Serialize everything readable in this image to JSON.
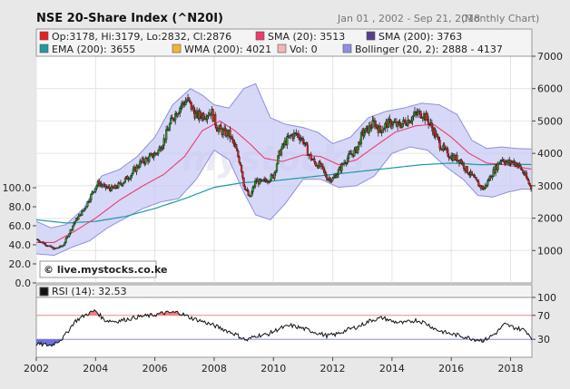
{
  "chart_data": {
    "type": "candlestick",
    "title": "NSE 20-Share Index (^N20I)",
    "date_range": "Jan 01 , 2002 - Sep 21, 2018",
    "frequency": "(Monthly Chart)",
    "watermark": "© live.mystocks.co.ke",
    "legend": [
      {
        "name": "Op:3178, Hi:3179, Lo:2832, Cl:2876",
        "color": "#e8201c"
      },
      {
        "name": "SMA (20): 3513",
        "color": "#ef3b6e"
      },
      {
        "name": "SMA (200): 3763",
        "color": "#5a3d8c"
      },
      {
        "name": "EMA (200): 3655",
        "color": "#1e9aa0"
      },
      {
        "name": "WMA (200): 4021",
        "color": "#f2b43c"
      },
      {
        "name": "Vol: 0",
        "color": "#f2b5b5"
      },
      {
        "name": "Bollinger (20, 2): 2888 - 4137",
        "color": "#8f8fe0"
      }
    ],
    "x_ticks": [
      "2002",
      "2004",
      "2006",
      "2008",
      "2010",
      "2012",
      "2014",
      "2016",
      "2018"
    ],
    "x_range": [
      2002.0,
      2018.72
    ],
    "y_right_ticks": [
      "1000",
      "2000",
      "3000",
      "4000",
      "5000",
      "6000",
      "7000"
    ],
    "y_range": [
      0,
      7000
    ],
    "volume_ticks": [
      "0.0",
      "20.0",
      "40.0",
      "60.0",
      "80.0",
      "100.0"
    ],
    "volume_range": [
      0,
      100
    ],
    "close_anchors": [
      [
        2002.0,
        1350
      ],
      [
        2002.3,
        1200
      ],
      [
        2002.6,
        1050
      ],
      [
        2002.9,
        1150
      ],
      [
        2003.3,
        1900
      ],
      [
        2003.6,
        2250
      ],
      [
        2003.9,
        2800
      ],
      [
        2004.1,
        3100
      ],
      [
        2004.3,
        2950
      ],
      [
        2004.6,
        2900
      ],
      [
        2004.9,
        3100
      ],
      [
        2005.2,
        3350
      ],
      [
        2005.5,
        3700
      ],
      [
        2005.8,
        3850
      ],
      [
        2006.1,
        4050
      ],
      [
        2006.3,
        4400
      ],
      [
        2006.6,
        5100
      ],
      [
        2006.9,
        5500
      ],
      [
        2007.1,
        5650
      ],
      [
        2007.4,
        5150
      ],
      [
        2007.7,
        5200
      ],
      [
        2007.9,
        5300
      ],
      [
        2008.1,
        4800
      ],
      [
        2008.3,
        4650
      ],
      [
        2008.5,
        4600
      ],
      [
        2008.7,
        4200
      ],
      [
        2008.9,
        3650
      ],
      [
        2009.0,
        3050
      ],
      [
        2009.2,
        2600
      ],
      [
        2009.4,
        3150
      ],
      [
        2009.6,
        3100
      ],
      [
        2009.8,
        3200
      ],
      [
        2010.0,
        3300
      ],
      [
        2010.2,
        4000
      ],
      [
        2010.4,
        4350
      ],
      [
        2010.6,
        4550
      ],
      [
        2010.8,
        4600
      ],
      [
        2011.0,
        4400
      ],
      [
        2011.2,
        3950
      ],
      [
        2011.4,
        3700
      ],
      [
        2011.6,
        3600
      ],
      [
        2011.8,
        3250
      ],
      [
        2012.0,
        3200
      ],
      [
        2012.2,
        3450
      ],
      [
        2012.4,
        3750
      ],
      [
        2012.6,
        3950
      ],
      [
        2012.8,
        4100
      ],
      [
        2013.0,
        4600
      ],
      [
        2013.2,
        4750
      ],
      [
        2013.4,
        4950
      ],
      [
        2013.6,
        4700
      ],
      [
        2013.8,
        4900
      ],
      [
        2014.0,
        4950
      ],
      [
        2014.2,
        4850
      ],
      [
        2014.5,
        5000
      ],
      [
        2014.8,
        5200
      ],
      [
        2015.0,
        5250
      ],
      [
        2015.2,
        5050
      ],
      [
        2015.4,
        4700
      ],
      [
        2015.6,
        4300
      ],
      [
        2015.8,
        4050
      ],
      [
        2016.0,
        3900
      ],
      [
        2016.3,
        3800
      ],
      [
        2016.5,
        3500
      ],
      [
        2016.7,
        3300
      ],
      [
        2016.9,
        3050
      ],
      [
        2017.1,
        2900
      ],
      [
        2017.3,
        3250
      ],
      [
        2017.5,
        3550
      ],
      [
        2017.7,
        3850
      ],
      [
        2017.9,
        3700
      ],
      [
        2018.1,
        3750
      ],
      [
        2018.3,
        3600
      ],
      [
        2018.5,
        3300
      ],
      [
        2018.72,
        2876
      ]
    ],
    "sma20_anchors": [
      [
        2002.0,
        1250
      ],
      [
        2002.6,
        1250
      ],
      [
        2003.3,
        1600
      ],
      [
        2004.0,
        2000
      ],
      [
        2004.8,
        2550
      ],
      [
        2005.6,
        3000
      ],
      [
        2006.3,
        3350
      ],
      [
        2007.0,
        3900
      ],
      [
        2007.6,
        4700
      ],
      [
        2008.2,
        5000
      ],
      [
        2008.7,
        4700
      ],
      [
        2009.2,
        4300
      ],
      [
        2009.7,
        3850
      ],
      [
        2010.3,
        3750
      ],
      [
        2011.0,
        3950
      ],
      [
        2011.6,
        3900
      ],
      [
        2012.2,
        3650
      ],
      [
        2012.8,
        3800
      ],
      [
        2013.4,
        4200
      ],
      [
        2014.1,
        4650
      ],
      [
        2014.8,
        4850
      ],
      [
        2015.4,
        4900
      ],
      [
        2016.0,
        4500
      ],
      [
        2016.6,
        4000
      ],
      [
        2017.2,
        3700
      ],
      [
        2017.8,
        3650
      ],
      [
        2018.4,
        3560
      ],
      [
        2018.72,
        3513
      ]
    ],
    "ema200_anchors": [
      [
        2002.0,
        1950
      ],
      [
        2003.0,
        1850
      ],
      [
        2004.0,
        1900
      ],
      [
        2005.0,
        2050
      ],
      [
        2006.0,
        2300
      ],
      [
        2007.0,
        2600
      ],
      [
        2008.0,
        2950
      ],
      [
        2009.0,
        3100
      ],
      [
        2010.0,
        3150
      ],
      [
        2011.0,
        3250
      ],
      [
        2012.0,
        3350
      ],
      [
        2013.0,
        3450
      ],
      [
        2014.0,
        3550
      ],
      [
        2015.0,
        3650
      ],
      [
        2016.0,
        3700
      ],
      [
        2017.0,
        3650
      ],
      [
        2018.0,
        3660
      ],
      [
        2018.72,
        3655
      ]
    ],
    "bb_upper_anchors": [
      [
        2002.0,
        1900
      ],
      [
        2002.5,
        1700
      ],
      [
        2003.0,
        1800
      ],
      [
        2003.6,
        2300
      ],
      [
        2004.2,
        3300
      ],
      [
        2004.8,
        3500
      ],
      [
        2005.4,
        3900
      ],
      [
        2006.0,
        4500
      ],
      [
        2006.6,
        5500
      ],
      [
        2007.2,
        6000
      ],
      [
        2007.6,
        5800
      ],
      [
        2008.0,
        5500
      ],
      [
        2008.5,
        5400
      ],
      [
        2009.0,
        6000
      ],
      [
        2009.4,
        6150
      ],
      [
        2009.9,
        5100
      ],
      [
        2010.4,
        4900
      ],
      [
        2011.0,
        4800
      ],
      [
        2011.5,
        4650
      ],
      [
        2012.0,
        4300
      ],
      [
        2012.6,
        4500
      ],
      [
        2013.2,
        5100
      ],
      [
        2013.8,
        5300
      ],
      [
        2014.4,
        5400
      ],
      [
        2015.0,
        5550
      ],
      [
        2015.6,
        5500
      ],
      [
        2016.2,
        5200
      ],
      [
        2016.7,
        4400
      ],
      [
        2017.2,
        4150
      ],
      [
        2017.7,
        4200
      ],
      [
        2018.2,
        4150
      ],
      [
        2018.72,
        4137
      ]
    ],
    "bb_lower_anchors": [
      [
        2002.0,
        900
      ],
      [
        2002.6,
        850
      ],
      [
        2003.2,
        1100
      ],
      [
        2003.8,
        1300
      ],
      [
        2004.4,
        1700
      ],
      [
        2005.0,
        2000
      ],
      [
        2005.6,
        2300
      ],
      [
        2006.2,
        2500
      ],
      [
        2006.8,
        2600
      ],
      [
        2007.4,
        3200
      ],
      [
        2008.0,
        4100
      ],
      [
        2008.5,
        3800
      ],
      [
        2009.0,
        2800
      ],
      [
        2009.4,
        2100
      ],
      [
        2009.9,
        1950
      ],
      [
        2010.4,
        2450
      ],
      [
        2011.0,
        3200
      ],
      [
        2011.6,
        3200
      ],
      [
        2012.2,
        2950
      ],
      [
        2012.8,
        3000
      ],
      [
        2013.4,
        3300
      ],
      [
        2014.0,
        4000
      ],
      [
        2014.6,
        4200
      ],
      [
        2015.2,
        4100
      ],
      [
        2015.8,
        3600
      ],
      [
        2016.4,
        3200
      ],
      [
        2016.9,
        2700
      ],
      [
        2017.4,
        2650
      ],
      [
        2017.9,
        2800
      ],
      [
        2018.4,
        2900
      ],
      [
        2018.72,
        2888
      ]
    ],
    "rsi": {
      "label": "RSI (14): 32.53",
      "color": "#111111",
      "ticks": [
        "30",
        "70",
        "100"
      ],
      "range": [
        0,
        100
      ],
      "overbought": 70,
      "oversold": 30,
      "anchors": [
        [
          2002.0,
          22
        ],
        [
          2002.5,
          20
        ],
        [
          2002.9,
          32
        ],
        [
          2003.3,
          60
        ],
        [
          2003.7,
          72
        ],
        [
          2004.0,
          78
        ],
        [
          2004.3,
          62
        ],
        [
          2004.7,
          60
        ],
        [
          2005.1,
          64
        ],
        [
          2005.5,
          68
        ],
        [
          2005.9,
          70
        ],
        [
          2006.3,
          74
        ],
        [
          2006.8,
          75
        ],
        [
          2007.2,
          66
        ],
        [
          2007.6,
          60
        ],
        [
          2008.0,
          53
        ],
        [
          2008.3,
          47
        ],
        [
          2008.7,
          39
        ],
        [
          2009.1,
          28
        ],
        [
          2009.4,
          36
        ],
        [
          2009.8,
          38
        ],
        [
          2010.2,
          48
        ],
        [
          2010.6,
          53
        ],
        [
          2011.0,
          48
        ],
        [
          2011.4,
          42
        ],
        [
          2011.8,
          36
        ],
        [
          2012.1,
          38
        ],
        [
          2012.5,
          46
        ],
        [
          2012.9,
          52
        ],
        [
          2013.3,
          62
        ],
        [
          2013.7,
          66
        ],
        [
          2014.0,
          60
        ],
        [
          2014.4,
          57
        ],
        [
          2014.8,
          62
        ],
        [
          2015.1,
          58
        ],
        [
          2015.5,
          46
        ],
        [
          2015.9,
          40
        ],
        [
          2016.3,
          36
        ],
        [
          2016.7,
          31
        ],
        [
          2017.1,
          28
        ],
        [
          2017.5,
          40
        ],
        [
          2017.8,
          55
        ],
        [
          2018.1,
          50
        ],
        [
          2018.5,
          45
        ],
        [
          2018.72,
          32.53
        ]
      ]
    }
  }
}
